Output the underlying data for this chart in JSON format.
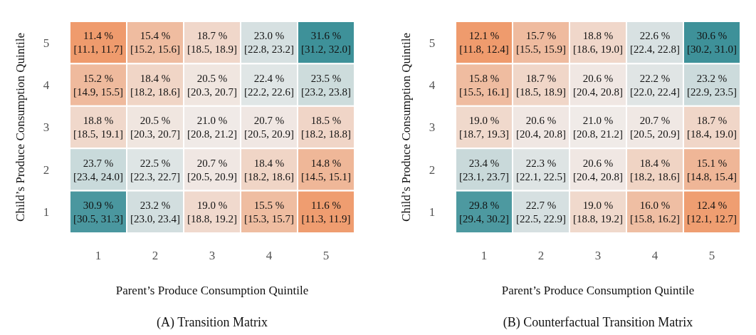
{
  "chart_data": [
    {
      "type": "heatmap",
      "title": "(A) Transition Matrix",
      "xlabel": "Parent’s Produce Consumption Quintile",
      "ylabel": "Child’s Produce Consumption Quintile",
      "categories": [
        "1",
        "2",
        "3",
        "4",
        "5"
      ],
      "y_categories": [
        "5",
        "4",
        "3",
        "2",
        "1"
      ],
      "cells": [
        [
          11.4,
          15.4,
          18.7,
          23.0,
          31.6
        ],
        [
          15.2,
          18.4,
          20.5,
          22.4,
          23.5
        ],
        [
          18.8,
          20.5,
          21.0,
          20.7,
          18.5
        ],
        [
          23.7,
          22.5,
          20.7,
          18.4,
          14.8
        ],
        [
          30.9,
          23.2,
          19.0,
          15.5,
          11.6
        ]
      ],
      "cell_labels": [
        [
          "11.4 %",
          "15.4 %",
          "18.7 %",
          "23.0 %",
          "31.6 %"
        ],
        [
          "15.2 %",
          "18.4 %",
          "20.5 %",
          "22.4 %",
          "23.5 %"
        ],
        [
          "18.8 %",
          "20.5 %",
          "21.0 %",
          "20.7 %",
          "18.5 %"
        ],
        [
          "23.7 %",
          "22.5 %",
          "20.7 %",
          "18.4 %",
          "14.8 %"
        ],
        [
          "30.9 %",
          "23.2 %",
          "19.0 %",
          "15.5 %",
          "11.6 %"
        ]
      ],
      "annotations": [
        "[11.1, 11.7]",
        "[15.2, 15.6]",
        "[18.5, 18.9]",
        "[22.8, 23.2]",
        "[31.2, 32.0]",
        "[14.9, 15.5]",
        "[18.2, 18.6]",
        "[20.3, 20.7]",
        "[22.2, 22.6]",
        "[23.2, 23.8]",
        "[18.5, 19.1]",
        "[20.3, 20.7]",
        "[20.8, 21.2]",
        "[20.5, 20.9]",
        "[18.2, 18.8]",
        "[23.4, 24.0]",
        "[22.3, 22.7]",
        "[20.5, 20.9]",
        "[18.2, 18.6]",
        "[14.5, 15.1]",
        "[30.5, 31.3]",
        "[23.0, 23.4]",
        "[18.8, 19.2]",
        "[15.3, 15.7]",
        "[11.3, 11.9]"
      ]
    },
    {
      "type": "heatmap",
      "title": "(B) Counterfactual Transition Matrix",
      "xlabel": "Parent’s Produce Consumption Quintile",
      "ylabel": "Child’s Produce Consumption Quintile",
      "categories": [
        "1",
        "2",
        "3",
        "4",
        "5"
      ],
      "y_categories": [
        "5",
        "4",
        "3",
        "2",
        "1"
      ],
      "cells": [
        [
          12.1,
          15.7,
          18.8,
          22.6,
          30.6
        ],
        [
          15.8,
          18.7,
          20.6,
          22.2,
          23.2
        ],
        [
          19.0,
          20.6,
          21.0,
          20.7,
          18.7
        ],
        [
          23.4,
          22.3,
          20.6,
          18.4,
          15.1
        ],
        [
          29.8,
          22.7,
          19.0,
          16.0,
          12.4
        ]
      ],
      "cell_labels": [
        [
          "12.1 %",
          "15.7 %",
          "18.8 %",
          "22.6 %",
          "30.6 %"
        ],
        [
          "15.8 %",
          "18.7 %",
          "20.6 %",
          "22.2 %",
          "23.2 %"
        ],
        [
          "19.0 %",
          "20.6 %",
          "21.0 %",
          "20.7 %",
          "18.7 %"
        ],
        [
          "23.4 %",
          "22.3 %",
          "20.6 %",
          "18.4 %",
          "15.1 %"
        ],
        [
          "29.8 %",
          "22.7 %",
          "19.0 %",
          "16.0 %",
          "12.4 %"
        ]
      ],
      "annotations": [
        "[11.8, 12.4]",
        "[15.5, 15.9]",
        "[18.6, 19.0]",
        "[22.4, 22.8]",
        "[30.2, 31.0]",
        "[15.5, 16.1]",
        "[18.5, 18.9]",
        "[20.4, 20.8]",
        "[22.0, 22.4]",
        "[22.9, 23.5]",
        "[18.7, 19.3]",
        "[20.4, 20.8]",
        "[20.8, 21.2]",
        "[20.5, 20.9]",
        "[18.4, 19.0]",
        "[23.1, 23.7]",
        "[22.1, 22.5]",
        "[20.4, 20.8]",
        "[18.2, 18.6]",
        "[14.8, 15.4]",
        "[29.4, 30.2]",
        "[22.5, 22.9]",
        "[18.8, 19.2]",
        "[15.8, 16.2]",
        "[12.1, 12.7]"
      ]
    }
  ]
}
